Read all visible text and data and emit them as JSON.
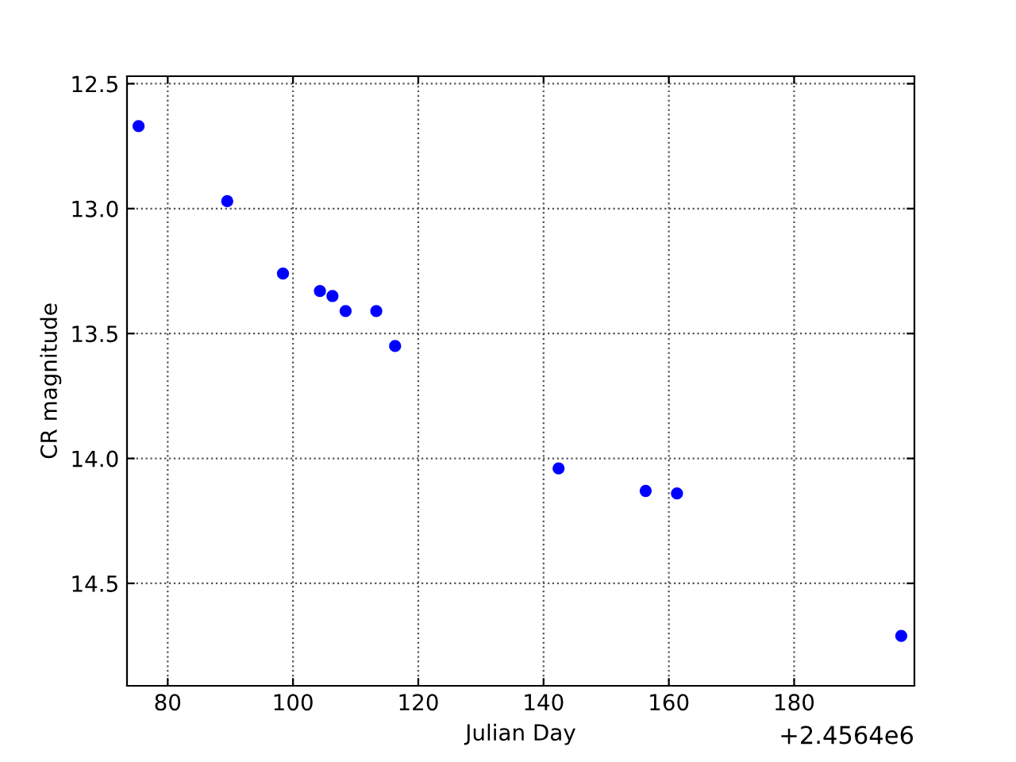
{
  "chart_data": {
    "type": "scatter",
    "xlabel": "Julian Day",
    "ylabel": "CR magnitude",
    "annotations": [
      "+2.4564e6"
    ],
    "x": [
      75.35,
      89.5,
      98.4,
      104.3,
      106.3,
      108.4,
      113.3,
      116.3,
      142.4,
      156.3,
      161.3,
      197.1
    ],
    "series": [
      {
        "color": "#0000ff",
        "values": [
          12.67,
          12.97,
          13.26,
          13.33,
          13.35,
          13.41,
          13.41,
          13.55,
          14.04,
          14.13,
          14.14,
          14.71
        ]
      }
    ],
    "xlim": [
      73.5,
      199.2
    ],
    "ylim": [
      14.91,
      12.47
    ],
    "xticks": [
      80,
      100,
      120,
      140,
      160,
      180
    ],
    "yticks": [
      12.5,
      {
        "value": 13,
        "label": "13.0"
      },
      13.5,
      {
        "value": 14,
        "label": "14.0"
      },
      14.5
    ],
    "grid": true,
    "marker": "circle"
  }
}
